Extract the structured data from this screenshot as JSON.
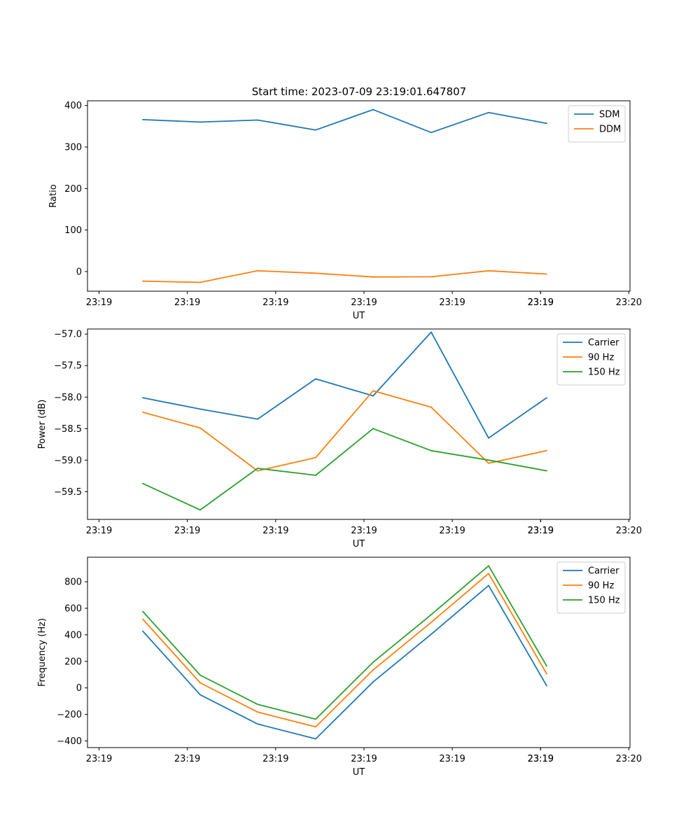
{
  "figure_title": "Start time: 2023-07-09 23:19:01.647807",
  "colors": {
    "blue": "#1f77b4",
    "orange": "#ff7f0e",
    "green": "#2ca02c"
  },
  "chart_data": [
    {
      "type": "line",
      "title": "Start time: 2023-07-09 23:19:01.647807",
      "xlabel": "UT",
      "ylabel": "Ratio",
      "x_ticks": [
        "23:19",
        "23:19",
        "23:19",
        "23:19",
        "23:19",
        "23:19",
        "23:19",
        "23:20"
      ],
      "ylim": [
        -47.3,
        411.3
      ],
      "y_ticks": [
        400,
        300,
        200,
        100,
        0
      ],
      "legend_position": "top-right",
      "series": [
        {
          "name": "SDM",
          "color": "#1f77b4",
          "values": [
            366,
            360,
            365,
            341,
            390,
            335,
            383,
            357
          ]
        },
        {
          "name": "DDM",
          "color": "#ff7f0e",
          "values": [
            -23,
            -26,
            2,
            -4,
            -13,
            -12.5,
            2,
            -6
          ]
        }
      ]
    },
    {
      "type": "line",
      "xlabel": "UT",
      "ylabel": "Power (dB)",
      "x_ticks": [
        "23:19",
        "23:19",
        "23:19",
        "23:19",
        "23:19",
        "23:19",
        "23:19",
        "23:20"
      ],
      "ylim": [
        -59.94,
        -56.92
      ],
      "y_ticks": [
        "-57.0",
        "-57.5",
        "-58.0",
        "-58.5",
        "-59.0",
        "-59.5"
      ],
      "legend_position": "top-right",
      "series": [
        {
          "name": "Carrier",
          "color": "#1f77b4",
          "values": [
            -58.01,
            -58.19,
            -58.35,
            -57.71,
            -57.98,
            -56.97,
            -58.65,
            -58.01
          ]
        },
        {
          "name": "90 Hz",
          "color": "#ff7f0e",
          "values": [
            -58.24,
            -58.49,
            -59.17,
            -58.96,
            -57.9,
            -58.16,
            -59.05,
            -58.85
          ]
        },
        {
          "name": "150 Hz",
          "color": "#2ca02c",
          "values": [
            -59.37,
            -59.79,
            -59.13,
            -59.24,
            -58.5,
            -58.85,
            -59.0,
            -59.17
          ]
        }
      ]
    },
    {
      "type": "line",
      "xlabel": "UT",
      "ylabel": "Frequency (Hz)",
      "x_ticks": [
        "23:19",
        "23:19",
        "23:19",
        "23:19",
        "23:19",
        "23:19",
        "23:19",
        "23:20"
      ],
      "ylim": [
        -450,
        985
      ],
      "y_ticks": [
        800,
        600,
        400,
        200,
        0,
        -200,
        -400
      ],
      "legend_position": "top-right",
      "series": [
        {
          "name": "Carrier",
          "color": "#1f77b4",
          "values": [
            428,
            -52,
            -272,
            -384,
            45,
            404,
            772,
            16
          ]
        },
        {
          "name": "90 Hz",
          "color": "#ff7f0e",
          "values": [
            518,
            38,
            -182,
            -294,
            135,
            494,
            862,
            106
          ]
        },
        {
          "name": "150 Hz",
          "color": "#2ca02c",
          "values": [
            576,
            96,
            -124,
            -236,
            193,
            552,
            920,
            164
          ]
        }
      ]
    }
  ]
}
